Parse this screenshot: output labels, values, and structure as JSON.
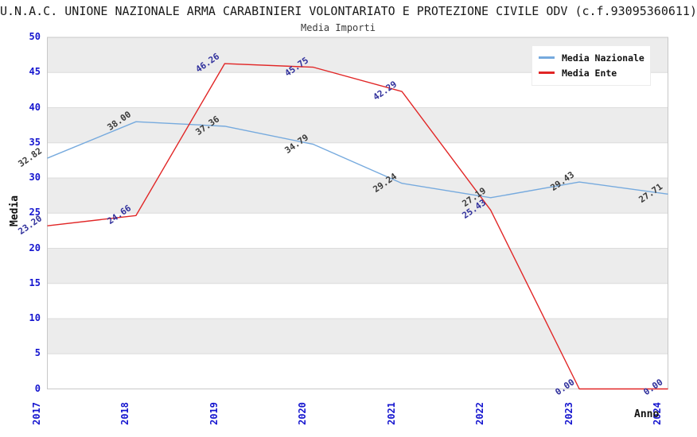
{
  "title": "U.N.A.C. UNIONE NAZIONALE ARMA CARABINIERI VOLONTARIATO E PROTEZIONE CIVILE ODV (c.f.93095360611)",
  "subtitle": "Media Importi",
  "axes": {
    "y_label": "Media",
    "x_label": "Anno"
  },
  "colors": {
    "tick_blue": "#1515cf",
    "band_gray": "#ececec",
    "gridline": "#dcdcdc",
    "plot_border": "#c8c8c8",
    "nazionale_line": "#76aade",
    "ente_line": "#e12626",
    "nazionale_label": "#3a3a3a",
    "ente_label": "#30309c"
  },
  "chart_data": {
    "type": "line",
    "title": "Media Importi",
    "xlabel": "Anno",
    "ylabel": "Media",
    "categories": [
      "2017",
      "2018",
      "2019",
      "2020",
      "2021",
      "2022",
      "2023",
      "2024"
    ],
    "series": [
      {
        "name": "Media Nazionale",
        "color": "#76aade",
        "label_color": "#3a3a3a",
        "values": [
          32.82,
          38.0,
          37.36,
          34.79,
          29.24,
          27.19,
          29.43,
          27.71
        ]
      },
      {
        "name": "Media Ente",
        "color": "#e12626",
        "label_color": "#30309c",
        "values": [
          23.2,
          24.66,
          46.26,
          45.75,
          42.29,
          25.43,
          0.0,
          0.0
        ]
      }
    ],
    "ylim": [
      0,
      50
    ],
    "ytick_step": 5,
    "yticks": [
      0,
      5,
      10,
      15,
      20,
      25,
      30,
      35,
      40,
      45,
      50
    ],
    "grid": "horizontal-bands-alternating",
    "legend_position": "top-right",
    "data_labels_decimals": 2
  }
}
